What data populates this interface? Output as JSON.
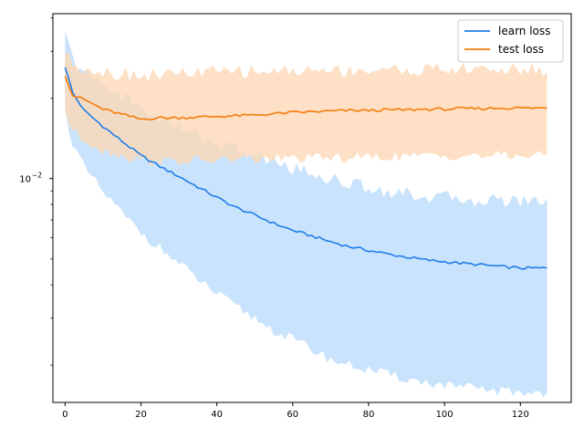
{
  "chart_data": {
    "type": "line",
    "title": "",
    "xlabel": "",
    "ylabel": "",
    "xlim": [
      -3.2,
      133.4
    ],
    "ylim": [
      0.00145,
      0.0415
    ],
    "yscale": "log",
    "x_ticks": [
      0,
      20,
      40,
      60,
      80,
      100,
      120
    ],
    "x_tick_labels": [
      "0",
      "20",
      "40",
      "60",
      "80",
      "100",
      "120"
    ],
    "y_major_ticks": [
      0.01
    ],
    "y_major_tick_labels": [
      "10",
      "−2"
    ],
    "y_minor_ticks": [
      0.002,
      0.003,
      0.004,
      0.005,
      0.006,
      0.007,
      0.008,
      0.009,
      0.02,
      0.03,
      0.04
    ],
    "grid": false,
    "legend_position": "top-right",
    "series": [
      {
        "name": "learn loss",
        "color": "#1f7ee8",
        "band_color": "#bcdcfb",
        "band_opacity": 0.8,
        "x": [
          0,
          2,
          5,
          10,
          15,
          20,
          25,
          30,
          35,
          40,
          45,
          50,
          55,
          60,
          65,
          70,
          75,
          80,
          85,
          90,
          95,
          100,
          105,
          110,
          115,
          120,
          127
        ],
        "y": [
          0.0263,
          0.021,
          0.018,
          0.0157,
          0.0138,
          0.0122,
          0.0111,
          0.0102,
          0.0093,
          0.0085,
          0.0078,
          0.0073,
          0.0068,
          0.0064,
          0.0061,
          0.0058,
          0.00556,
          0.00538,
          0.00522,
          0.00508,
          0.00496,
          0.00488,
          0.00481,
          0.00475,
          0.00468,
          0.00462,
          0.00462
        ],
        "lower": [
          0.018,
          0.0135,
          0.011,
          0.0089,
          0.0074,
          0.0063,
          0.0055,
          0.0048,
          0.0042,
          0.0037,
          0.0033,
          0.003,
          0.0027,
          0.0025,
          0.0023,
          0.0021,
          0.002,
          0.00192,
          0.00184,
          0.00178,
          0.00172,
          0.00168,
          0.00165,
          0.00162,
          0.0016,
          0.00158,
          0.00158
        ],
        "upper": [
          0.035,
          0.028,
          0.025,
          0.0225,
          0.0205,
          0.0185,
          0.0168,
          0.0155,
          0.0145,
          0.0136,
          0.0129,
          0.0122,
          0.0116,
          0.011,
          0.0105,
          0.01,
          0.0096,
          0.0093,
          0.009,
          0.0088,
          0.0086,
          0.0085,
          0.0084,
          0.0083,
          0.0083,
          0.0083,
          0.0083
        ]
      },
      {
        "name": "test loss",
        "color": "#f57c0c",
        "band_color": "#fdd8b6",
        "band_opacity": 0.8,
        "x": [
          0,
          2,
          5,
          10,
          15,
          20,
          25,
          30,
          35,
          40,
          45,
          50,
          55,
          60,
          65,
          70,
          75,
          80,
          85,
          90,
          95,
          100,
          105,
          110,
          115,
          120,
          127
        ],
        "y": [
          0.0245,
          0.0205,
          0.0198,
          0.0182,
          0.0174,
          0.0167,
          0.0169,
          0.0169,
          0.017,
          0.0171,
          0.0172,
          0.0173,
          0.0175,
          0.0177,
          0.0178,
          0.0179,
          0.018,
          0.018,
          0.0181,
          0.0181,
          0.0182,
          0.0182,
          0.0183,
          0.0183,
          0.0184,
          0.0184,
          0.0184
        ],
        "lower": [
          0.018,
          0.015,
          0.014,
          0.0128,
          0.0122,
          0.0118,
          0.0116,
          0.0116,
          0.0117,
          0.0117,
          0.0118,
          0.0118,
          0.0119,
          0.0119,
          0.0119,
          0.012,
          0.012,
          0.012,
          0.0121,
          0.0121,
          0.0121,
          0.0122,
          0.0122,
          0.0122,
          0.0122,
          0.0122,
          0.0122
        ],
        "upper": [
          0.03,
          0.027,
          0.0262,
          0.0252,
          0.0248,
          0.0245,
          0.0246,
          0.0248,
          0.025,
          0.0251,
          0.0252,
          0.0253,
          0.0254,
          0.0254,
          0.0255,
          0.0255,
          0.0255,
          0.0256,
          0.0256,
          0.0256,
          0.0256,
          0.0257,
          0.0257,
          0.0257,
          0.0257,
          0.0257,
          0.0257
        ]
      }
    ]
  }
}
